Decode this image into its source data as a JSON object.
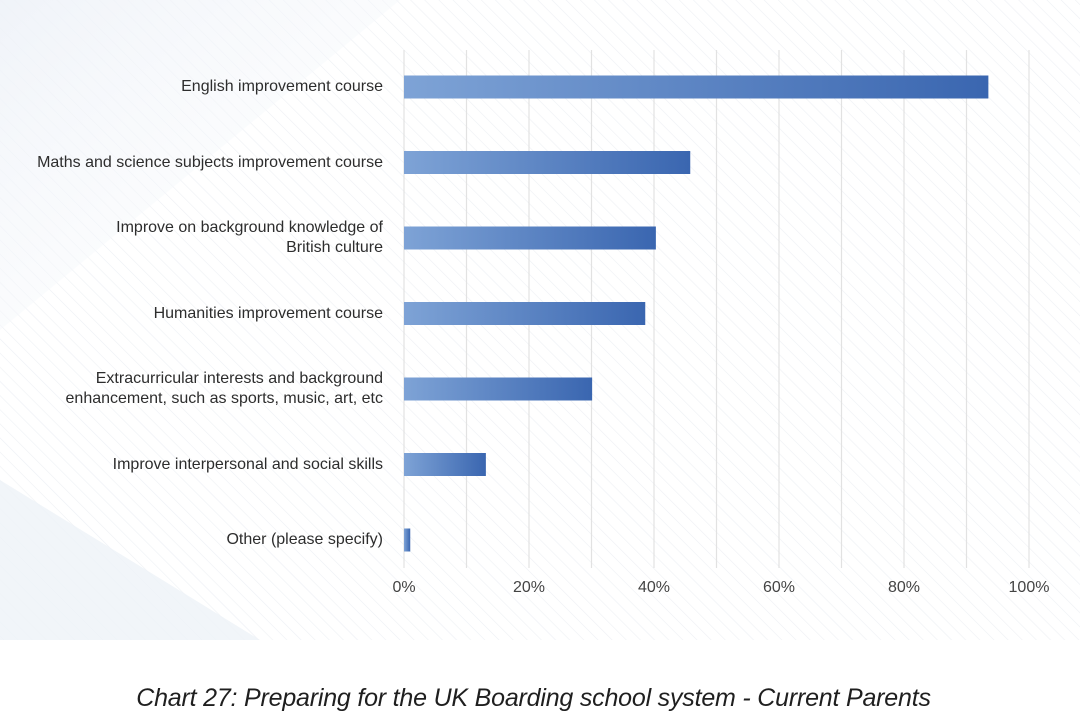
{
  "chart_data": {
    "type": "bar",
    "orientation": "horizontal",
    "categories": [
      "English improvement course",
      "Maths and science subjects improvement course",
      "Improve on background knowledge of\nBritish culture",
      "Humanities improvement course",
      "Extracurricular interests and background\nenhancement, such as sports, music, art, etc",
      "Improve interpersonal and social skills",
      "Other (please specify)"
    ],
    "values": [
      93.5,
      45.8,
      40.3,
      38.6,
      30.1,
      13.1,
      1.0
    ],
    "xlim": [
      0,
      100
    ],
    "x_ticks": [
      "0%",
      "20%",
      "40%",
      "60%",
      "80%",
      "100%"
    ],
    "value_unit": "%",
    "grid": "vertical",
    "legend": "none",
    "bar_gradient": [
      "#7ea3d6",
      "#3a66b0"
    ],
    "gridline_color": "#e2e2e2"
  },
  "caption": "Chart 27: Preparing for the UK Boarding school system - Current Parents"
}
